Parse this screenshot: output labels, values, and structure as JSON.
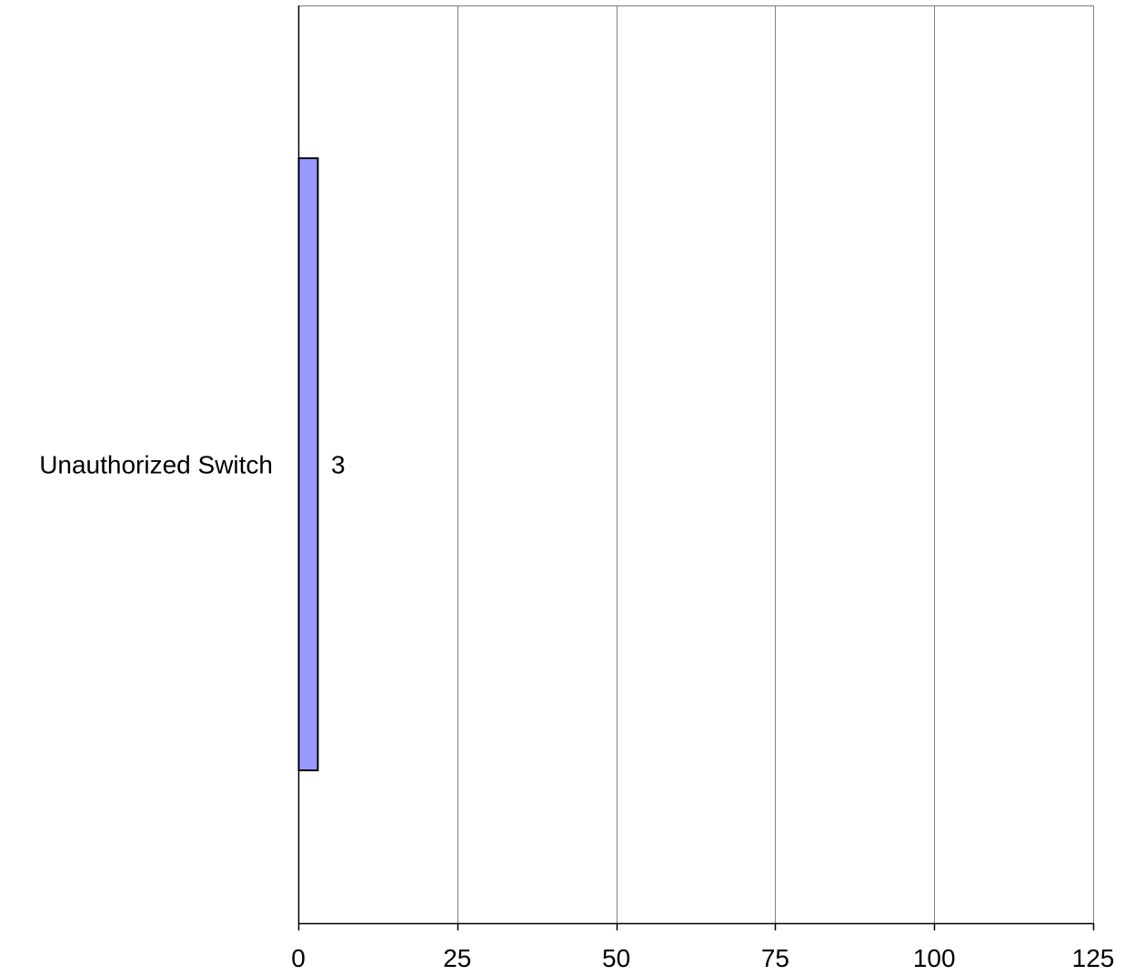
{
  "chart_data": {
    "type": "bar",
    "orientation": "horizontal",
    "title": "",
    "xlabel": "",
    "ylabel": "",
    "categories": [
      "Unauthorized Switch"
    ],
    "values": [
      3
    ],
    "data_labels": [
      "3"
    ],
    "xlim": [
      0,
      125
    ],
    "xticks": [
      0,
      25,
      50,
      75,
      100,
      125
    ],
    "xtick_labels": [
      "0",
      "25",
      "50",
      "75",
      "100",
      "125"
    ],
    "grid": "vertical",
    "legend": "none",
    "colors": {
      "bar_fill": "#9999ff",
      "bar_stroke": "#000000",
      "gridline": "#808080",
      "axis": "#000000",
      "background": "#ffffff"
    }
  }
}
